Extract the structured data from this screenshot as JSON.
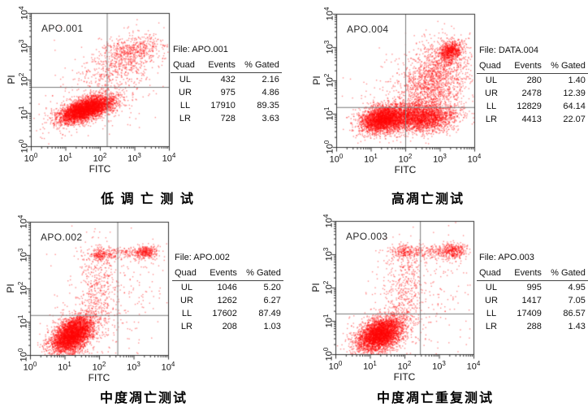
{
  "page": {
    "background": "#ffffff"
  },
  "colors": {
    "points": "#ff0000",
    "frame": "#333333",
    "quadrant_lines": "#7a7a7a",
    "text": "#111111"
  },
  "chart_data": [
    {
      "type": "scatter",
      "label": "APO.001",
      "caption": "低 调 亡 测 试",
      "xlabel": "FITC",
      "ylabel": "PI",
      "x_ticks": [
        "0",
        "1",
        "2",
        "3",
        "4"
      ],
      "y_ticks": [
        "0",
        "1",
        "2",
        "3",
        "4"
      ],
      "xlim_log": [
        0,
        4
      ],
      "ylim_log": [
        0,
        4
      ],
      "point_color": "#ff0000",
      "quadrant": {
        "x_log": 2.2,
        "y_log": 1.78
      },
      "clusters": [
        {
          "n": 4200,
          "cx": 1.58,
          "cy": 1.12,
          "sx": 0.4,
          "sy": 0.2,
          "rho": 0.6
        },
        {
          "n": 650,
          "cx": 2.75,
          "cy": 2.6,
          "sx": 0.55,
          "sy": 0.45,
          "rho": 0.5
        },
        {
          "n": 220,
          "cx": 3.0,
          "cy": 2.95,
          "sx": 0.42,
          "sy": 0.18,
          "rho": 0.3
        },
        {
          "n": 280,
          "cx": 2.1,
          "cy": 1.6,
          "sx": 0.85,
          "sy": 0.75,
          "rho": 0.3
        }
      ],
      "stats": {
        "file": "File: APO.001",
        "columns": [
          "Quad",
          "Events",
          "% Gated"
        ],
        "rows": [
          [
            "UL",
            "432",
            "2.16"
          ],
          [
            "UR",
            "975",
            "4.86"
          ],
          [
            "LL",
            "17910",
            "89.35"
          ],
          [
            "LR",
            "728",
            "3.63"
          ]
        ]
      }
    },
    {
      "type": "scatter",
      "label": "APO.004",
      "caption": "高凋亡测试",
      "xlabel": "FITC",
      "ylabel": "PI",
      "x_ticks": [
        "0",
        "1",
        "2",
        "3",
        "4"
      ],
      "y_ticks": [
        "0",
        "1",
        "2",
        "3",
        "4"
      ],
      "xlim_log": [
        0,
        4
      ],
      "ylim_log": [
        0,
        4
      ],
      "point_color": "#ff0000",
      "quadrant": {
        "x_log": 2.0,
        "y_log": 1.2
      },
      "clusters": [
        {
          "n": 3000,
          "cx": 1.35,
          "cy": 0.85,
          "sx": 0.33,
          "sy": 0.2,
          "rho": 0.25
        },
        {
          "n": 2600,
          "cx": 2.45,
          "cy": 0.9,
          "sx": 0.5,
          "sy": 0.22,
          "rho": 0.05
        },
        {
          "n": 1600,
          "cx": 2.85,
          "cy": 2.05,
          "sx": 0.5,
          "sy": 0.6,
          "rho": 0.35
        },
        {
          "n": 700,
          "cx": 3.3,
          "cy": 2.9,
          "sx": 0.18,
          "sy": 0.16,
          "rho": 0.3
        },
        {
          "n": 350,
          "cx": 2.2,
          "cy": 1.5,
          "sx": 0.85,
          "sy": 0.75,
          "rho": 0.2
        }
      ],
      "stats": {
        "file": "File: DATA.004",
        "columns": [
          "Quad",
          "Events",
          "% Gated"
        ],
        "rows": [
          [
            "UL",
            "280",
            "1.40"
          ],
          [
            "UR",
            "2478",
            "12.39"
          ],
          [
            "LL",
            "12829",
            "64.14"
          ],
          [
            "LR",
            "4413",
            "22.07"
          ]
        ]
      }
    },
    {
      "type": "scatter",
      "label": "APO.002",
      "caption": "中度凋亡测试",
      "xlabel": "FITC",
      "ylabel": "PI",
      "x_ticks": [
        "0",
        "1",
        "2",
        "3",
        "4"
      ],
      "y_ticks": [
        "0",
        "1",
        "2",
        "3",
        "4"
      ],
      "xlim_log": [
        0,
        4
      ],
      "ylim_log": [
        0,
        4
      ],
      "point_color": "#ff0000",
      "quadrant": {
        "x_log": 2.53,
        "y_log": 1.2
      },
      "clusters": [
        {
          "n": 4000,
          "cx": 1.22,
          "cy": 0.62,
          "sx": 0.3,
          "sy": 0.28,
          "rho": 0.45
        },
        {
          "n": 260,
          "cx": 2.55,
          "cy": 3.06,
          "sx": 0.55,
          "sy": 0.1,
          "rho": 0.0
        },
        {
          "n": 280,
          "cx": 3.35,
          "cy": 3.1,
          "sx": 0.16,
          "sy": 0.1,
          "rho": 0.0
        },
        {
          "n": 130,
          "cx": 2.0,
          "cy": 3.0,
          "sx": 0.13,
          "sy": 0.09,
          "rho": 0.0
        },
        {
          "n": 420,
          "cx": 1.95,
          "cy": 1.95,
          "sx": 0.28,
          "sy": 0.72,
          "rho": 0.1
        },
        {
          "n": 260,
          "cx": 2.4,
          "cy": 1.6,
          "sx": 0.85,
          "sy": 0.9,
          "rho": 0.2
        }
      ],
      "stats": {
        "file": "File: APO.002",
        "columns": [
          "Quad",
          "Events",
          "% Gated"
        ],
        "rows": [
          [
            "UL",
            "1046",
            "5.20"
          ],
          [
            "UR",
            "1262",
            "6.27"
          ],
          [
            "LL",
            "17602",
            "87.49"
          ],
          [
            "LR",
            "208",
            "1.03"
          ]
        ]
      }
    },
    {
      "type": "scatter",
      "label": "APO.003",
      "caption": "中度凋亡重复测试",
      "xlabel": "FITC",
      "ylabel": "PI",
      "x_ticks": [
        "0",
        "1",
        "2",
        "3",
        "4"
      ],
      "y_ticks": [
        "0",
        "1",
        "2",
        "3",
        "4"
      ],
      "xlim_log": [
        0,
        4
      ],
      "ylim_log": [
        0,
        4
      ],
      "point_color": "#ff0000",
      "quadrant": {
        "x_log": 2.45,
        "y_log": 1.22
      },
      "clusters": [
        {
          "n": 4000,
          "cx": 1.28,
          "cy": 0.6,
          "sx": 0.33,
          "sy": 0.27,
          "rho": 0.4
        },
        {
          "n": 240,
          "cx": 2.45,
          "cy": 3.1,
          "sx": 0.5,
          "sy": 0.11,
          "rho": 0.0
        },
        {
          "n": 380,
          "cx": 3.4,
          "cy": 3.1,
          "sx": 0.22,
          "sy": 0.12,
          "rho": 0.0
        },
        {
          "n": 110,
          "cx": 1.95,
          "cy": 3.05,
          "sx": 0.14,
          "sy": 0.09,
          "rho": 0.0
        },
        {
          "n": 420,
          "cx": 2.0,
          "cy": 1.9,
          "sx": 0.28,
          "sy": 0.7,
          "rho": 0.1
        },
        {
          "n": 260,
          "cx": 2.4,
          "cy": 1.6,
          "sx": 0.85,
          "sy": 0.9,
          "rho": 0.2
        }
      ],
      "stats": {
        "file": "File: APO.003",
        "columns": [
          "Quad",
          "Events",
          "% Gated"
        ],
        "rows": [
          [
            "UL",
            "995",
            "4.95"
          ],
          [
            "UR",
            "1417",
            "7.05"
          ],
          [
            "LL",
            "17409",
            "86.57"
          ],
          [
            "LR",
            "288",
            "1.43"
          ]
        ]
      }
    }
  ]
}
